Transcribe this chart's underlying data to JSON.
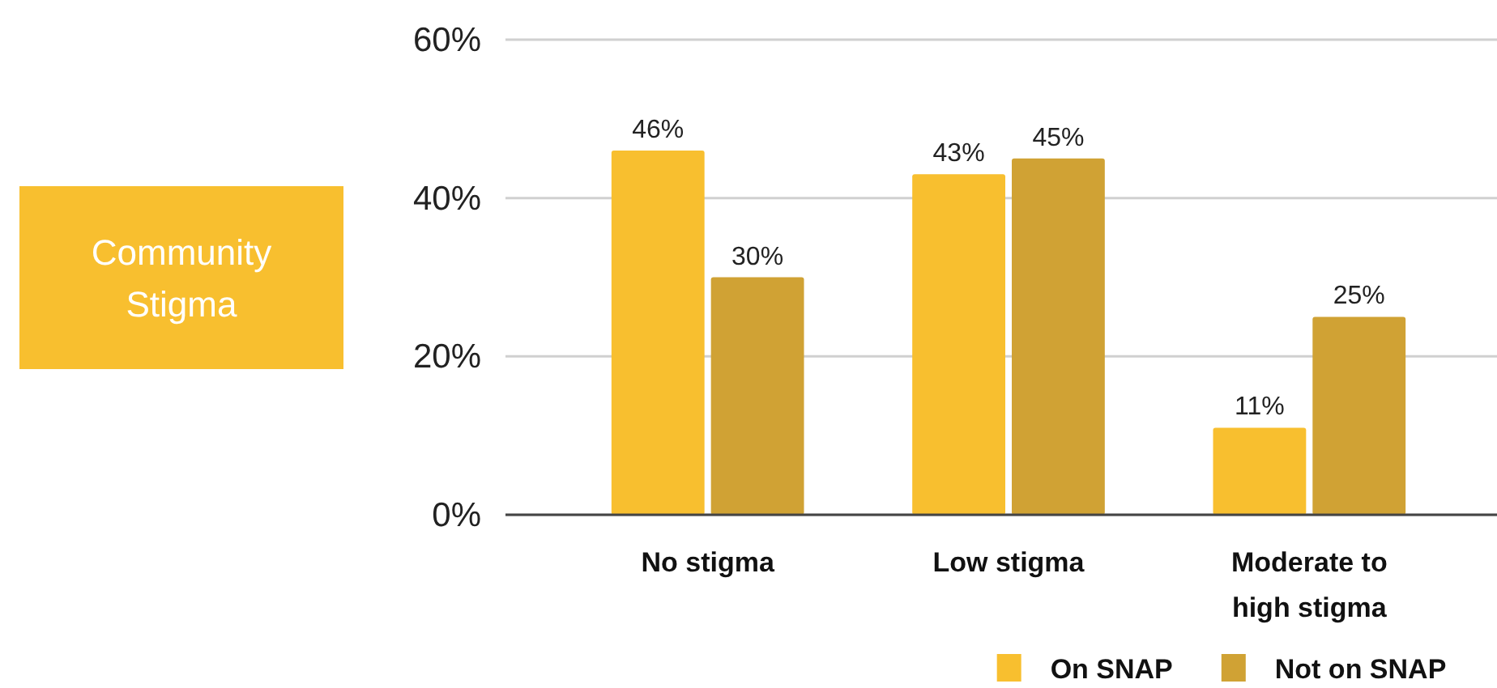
{
  "chart_data": {
    "type": "bar",
    "title": "Community Stigma",
    "categories": [
      "No stigma",
      "Low stigma",
      "Moderate to high stigma"
    ],
    "series": [
      {
        "name": "On SNAP",
        "color": "#f8bf2f",
        "values": [
          46,
          43,
          11
        ],
        "value_labels": [
          "46%",
          "43%",
          "11%"
        ]
      },
      {
        "name": "Not on SNAP",
        "color": "#d0a234",
        "values": [
          30,
          45,
          25
        ],
        "value_labels": [
          "30%",
          "45%",
          "25%"
        ]
      }
    ],
    "ylim": [
      0,
      60
    ],
    "yticks": [
      {
        "value": 0,
        "label": "0%"
      },
      {
        "value": 20,
        "label": "20%"
      },
      {
        "value": 40,
        "label": "40%"
      },
      {
        "value": 60,
        "label": "60%"
      }
    ],
    "grid": "y",
    "legend": "bottom"
  }
}
